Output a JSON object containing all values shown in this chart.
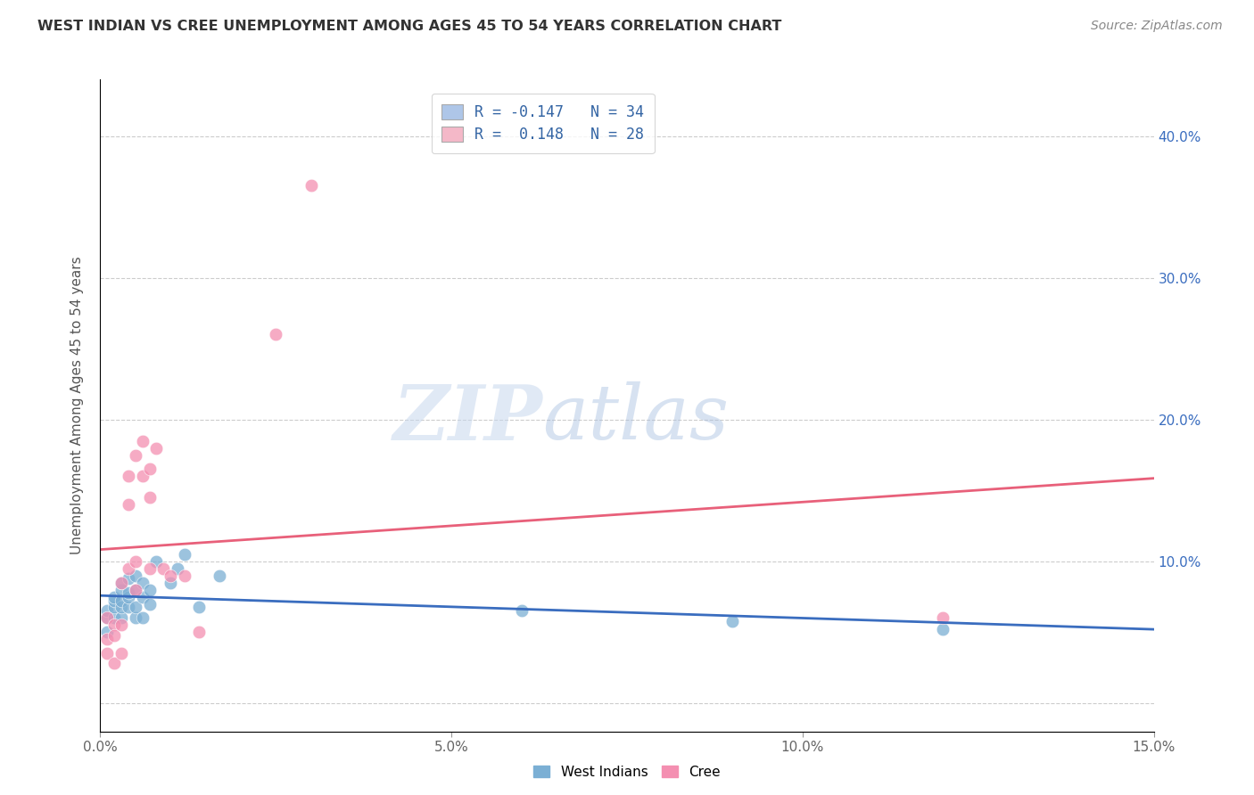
{
  "title": "WEST INDIAN VS CREE UNEMPLOYMENT AMONG AGES 45 TO 54 YEARS CORRELATION CHART",
  "source": "Source: ZipAtlas.com",
  "ylabel": "Unemployment Among Ages 45 to 54 years",
  "xlim": [
    0.0,
    0.15
  ],
  "ylim": [
    -0.02,
    0.44
  ],
  "xticks": [
    0.0,
    0.05,
    0.1,
    0.15
  ],
  "xtick_labels": [
    "0.0%",
    "5.0%",
    "10.0%",
    "15.0%"
  ],
  "yticks": [
    0.0,
    0.1,
    0.2,
    0.3,
    0.4
  ],
  "ytick_labels_right": [
    "",
    "10.0%",
    "20.0%",
    "30.0%",
    "40.0%"
  ],
  "legend_r1": "R = -0.147",
  "legend_n1": "N = 34",
  "legend_r2": "R =  0.148",
  "legend_n2": "N = 28",
  "legend_color1": "#aec6e8",
  "legend_color2": "#f4b8c8",
  "legend_text_color": "#3465a4",
  "west_indians_color": "#7bafd4",
  "cree_color": "#f48fb1",
  "west_indians_line_color": "#3a6dbf",
  "cree_line_color": "#e8607a",
  "background_color": "#ffffff",
  "grid_color": "#cccccc",
  "west_indians_x": [
    0.001,
    0.001,
    0.001,
    0.002,
    0.002,
    0.002,
    0.002,
    0.003,
    0.003,
    0.003,
    0.003,
    0.003,
    0.004,
    0.004,
    0.004,
    0.004,
    0.005,
    0.005,
    0.005,
    0.005,
    0.006,
    0.006,
    0.006,
    0.007,
    0.007,
    0.008,
    0.01,
    0.011,
    0.012,
    0.014,
    0.017,
    0.06,
    0.09,
    0.12
  ],
  "west_indians_y": [
    0.05,
    0.06,
    0.065,
    0.06,
    0.068,
    0.072,
    0.075,
    0.06,
    0.068,
    0.072,
    0.08,
    0.085,
    0.068,
    0.075,
    0.078,
    0.088,
    0.06,
    0.068,
    0.08,
    0.09,
    0.06,
    0.075,
    0.085,
    0.07,
    0.08,
    0.1,
    0.085,
    0.095,
    0.105,
    0.068,
    0.09,
    0.065,
    0.058,
    0.052
  ],
  "cree_x": [
    0.001,
    0.001,
    0.001,
    0.002,
    0.002,
    0.002,
    0.003,
    0.003,
    0.003,
    0.004,
    0.004,
    0.004,
    0.005,
    0.005,
    0.005,
    0.006,
    0.006,
    0.007,
    0.007,
    0.007,
    0.008,
    0.009,
    0.01,
    0.012,
    0.014,
    0.025,
    0.03,
    0.12
  ],
  "cree_y": [
    0.06,
    0.045,
    0.035,
    0.055,
    0.048,
    0.028,
    0.085,
    0.055,
    0.035,
    0.16,
    0.14,
    0.095,
    0.1,
    0.175,
    0.08,
    0.185,
    0.16,
    0.165,
    0.145,
    0.095,
    0.18,
    0.095,
    0.09,
    0.09,
    0.05,
    0.26,
    0.365,
    0.06
  ]
}
